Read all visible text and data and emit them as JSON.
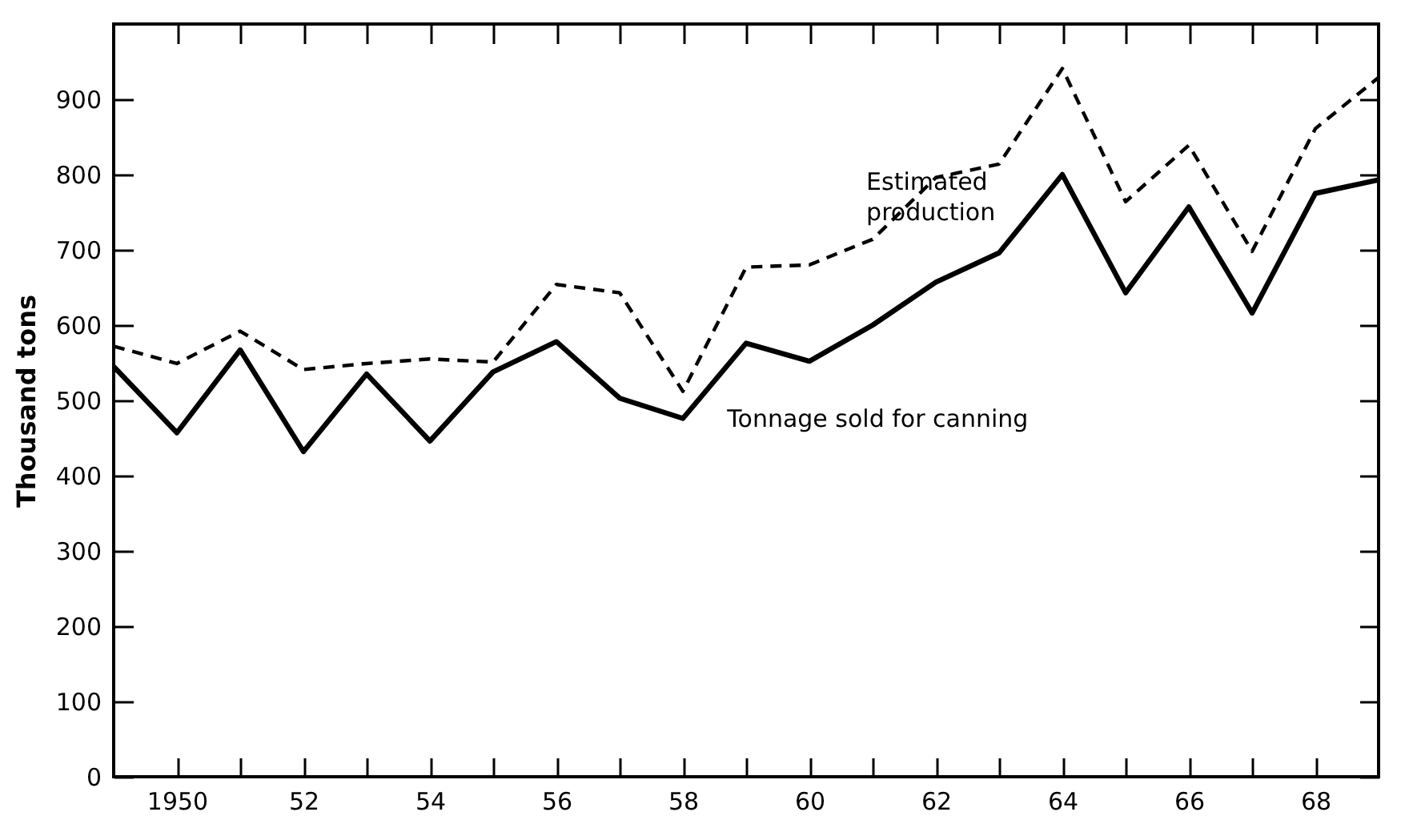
{
  "chart_data": {
    "type": "line",
    "ylabel": "Thousand tons",
    "x": [
      1949,
      1950,
      1951,
      1952,
      1953,
      1954,
      1955,
      1956,
      1957,
      1958,
      1959,
      1960,
      1961,
      1962,
      1963,
      1964,
      1965,
      1966,
      1967,
      1968,
      1969
    ],
    "series": [
      {
        "name": "Estimated production",
        "color": "#000000",
        "line_style": "dashed",
        "values": [
          572,
          549,
          592,
          541,
          549,
          555,
          551,
          654,
          643,
          512,
          677,
          680,
          714,
          796,
          814,
          941,
          764,
          839,
          698,
          861,
          929
        ]
      },
      {
        "name": "Tonnage sold for canning",
        "color": "#000000",
        "line_style": "solid",
        "values": [
          545,
          457,
          567,
          432,
          535,
          446,
          538,
          578,
          503,
          476,
          576,
          552,
          600,
          657,
          696,
          800,
          643,
          757,
          616,
          775,
          793
        ]
      }
    ],
    "xlim": [
      1949,
      1969
    ],
    "xticks": [
      {
        "value": 1950,
        "label": "1950"
      },
      {
        "value": 1951,
        "label": null
      },
      {
        "value": 1952,
        "label": "52"
      },
      {
        "value": 1953,
        "label": null
      },
      {
        "value": 1954,
        "label": "54"
      },
      {
        "value": 1955,
        "label": null
      },
      {
        "value": 1956,
        "label": "56"
      },
      {
        "value": 1957,
        "label": null
      },
      {
        "value": 1958,
        "label": "58"
      },
      {
        "value": 1959,
        "label": null
      },
      {
        "value": 1960,
        "label": "60"
      },
      {
        "value": 1961,
        "label": null
      },
      {
        "value": 1962,
        "label": "62"
      },
      {
        "value": 1963,
        "label": null
      },
      {
        "value": 1964,
        "label": "64"
      },
      {
        "value": 1965,
        "label": null
      },
      {
        "value": 1966,
        "label": "66"
      },
      {
        "value": 1967,
        "label": null
      },
      {
        "value": 1968,
        "label": "68"
      }
    ],
    "ylim": [
      0,
      1000
    ],
    "yticks": [
      0,
      100,
      200,
      300,
      400,
      500,
      600,
      700,
      800,
      900
    ],
    "grid": false,
    "legend": false,
    "marker": "none"
  }
}
